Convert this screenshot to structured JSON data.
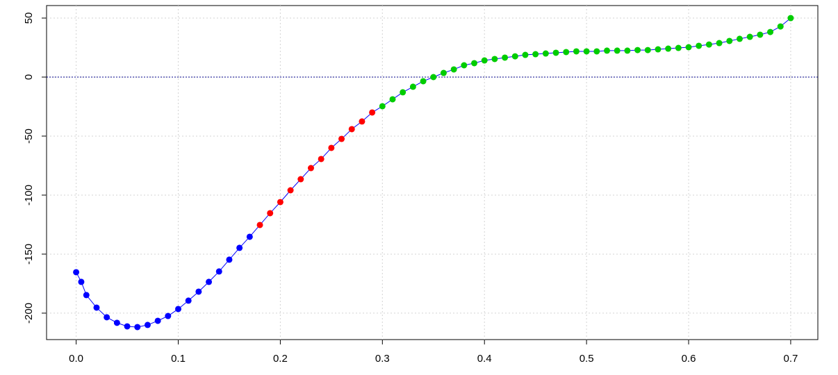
{
  "chart_data": {
    "type": "scatter",
    "xlim": [
      -0.029,
      0.7266
    ],
    "ylim": [
      -222.4,
      60.6
    ],
    "xticks": [
      {
        "value": 0,
        "label": "0.0"
      },
      0.1,
      0.2,
      0.3,
      0.4,
      0.5,
      0.6,
      0.7
    ],
    "yticks": [
      -200,
      -150,
      -100,
      -50,
      0,
      50
    ],
    "grid": true,
    "hline": 0,
    "hline_color": "#00008b",
    "line_color": "#0000ff",
    "series": [
      {
        "color": "#0000ff",
        "x": [
          0,
          0.005,
          0.01,
          0.02,
          0.03,
          0.04,
          0.05,
          0.06,
          0.07,
          0.08,
          0.09,
          0.1,
          0.11,
          0.12,
          0.13,
          0.14,
          0.15,
          0.16,
          0.17
        ],
        "values": [
          -165.3,
          -173.5,
          -184.7,
          -195.3,
          -203.5,
          -208.2,
          -211.2,
          -211.8,
          -210,
          -206.5,
          -202.4,
          -196.5,
          -189.4,
          -181.8,
          -173.5,
          -164.7,
          -154.7,
          -144.7,
          -135.3
        ]
      },
      {
        "color": "#ff0000",
        "x": [
          0.18,
          0.19,
          0.2,
          0.21,
          0.22,
          0.23,
          0.24,
          0.25,
          0.26,
          0.27,
          0.28,
          0.29
        ],
        "values": [
          -125.3,
          -115.3,
          -105.9,
          -95.9,
          -86.5,
          -77.1,
          -69.4,
          -60,
          -52.4,
          -44.1,
          -37.6,
          -30
        ]
      },
      {
        "color": "#00cd00",
        "x": [
          0.3,
          0.31,
          0.32,
          0.33,
          0.34,
          0.35,
          0.36,
          0.37,
          0.38,
          0.39,
          0.4,
          0.41,
          0.42,
          0.43,
          0.44,
          0.45,
          0.46,
          0.47,
          0.48,
          0.49,
          0.5,
          0.51,
          0.52,
          0.53,
          0.54,
          0.55,
          0.56,
          0.57,
          0.58,
          0.59,
          0.6,
          0.61,
          0.62,
          0.63,
          0.64,
          0.65,
          0.66,
          0.67,
          0.68,
          0.69,
          0.7
        ],
        "values": [
          -24.7,
          -18.8,
          -12.9,
          -8.2,
          -3.5,
          0,
          3.5,
          6.5,
          10,
          11.8,
          14.1,
          15.3,
          16.5,
          17.6,
          18.8,
          19.4,
          20,
          20.6,
          21.2,
          21.8,
          21.8,
          21.8,
          22.4,
          22.4,
          22.4,
          22.9,
          22.9,
          23.5,
          24.1,
          24.7,
          25.3,
          26.5,
          27.6,
          28.8,
          30.6,
          32.4,
          34.1,
          35.9,
          38.2,
          42.9,
          50
        ]
      }
    ]
  }
}
